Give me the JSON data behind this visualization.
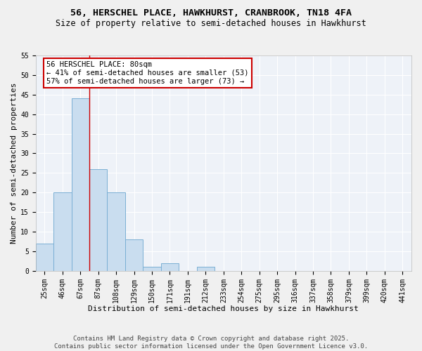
{
  "title_line1": "56, HERSCHEL PLACE, HAWKHURST, CRANBROOK, TN18 4FA",
  "title_line2": "Size of property relative to semi-detached houses in Hawkhurst",
  "xlabel": "Distribution of semi-detached houses by size in Hawkhurst",
  "ylabel": "Number of semi-detached properties",
  "bar_labels": [
    "25sqm",
    "46sqm",
    "67sqm",
    "87sqm",
    "108sqm",
    "129sqm",
    "150sqm",
    "171sqm",
    "191sqm",
    "212sqm",
    "233sqm",
    "254sqm",
    "275sqm",
    "295sqm",
    "316sqm",
    "337sqm",
    "358sqm",
    "379sqm",
    "399sqm",
    "420sqm",
    "441sqm"
  ],
  "bar_values": [
    7,
    20,
    44,
    26,
    20,
    8,
    1,
    2,
    0,
    1,
    0,
    0,
    0,
    0,
    0,
    0,
    0,
    0,
    0,
    0,
    0
  ],
  "bar_color": "#c9ddef",
  "bar_edge_color": "#7aafd4",
  "property_line_x": 2.5,
  "annotation_label": "56 HERSCHEL PLACE: 80sqm",
  "annotation_line1": "← 41% of semi-detached houses are smaller (53)",
  "annotation_line2": "57% of semi-detached houses are larger (73) →",
  "annotation_box_color": "#ffffff",
  "annotation_box_edge": "#cc0000",
  "vline_color": "#cc0000",
  "ylim": [
    0,
    55
  ],
  "yticks": [
    0,
    5,
    10,
    15,
    20,
    25,
    30,
    35,
    40,
    45,
    50,
    55
  ],
  "bg_color": "#eef2f8",
  "grid_color": "#ffffff",
  "footer": "Contains HM Land Registry data © Crown copyright and database right 2025.\nContains public sector information licensed under the Open Government Licence v3.0.",
  "title_fontsize": 9.5,
  "subtitle_fontsize": 8.5,
  "axis_label_fontsize": 8,
  "tick_fontsize": 7,
  "annotation_fontsize": 7.5,
  "footer_fontsize": 6.5
}
